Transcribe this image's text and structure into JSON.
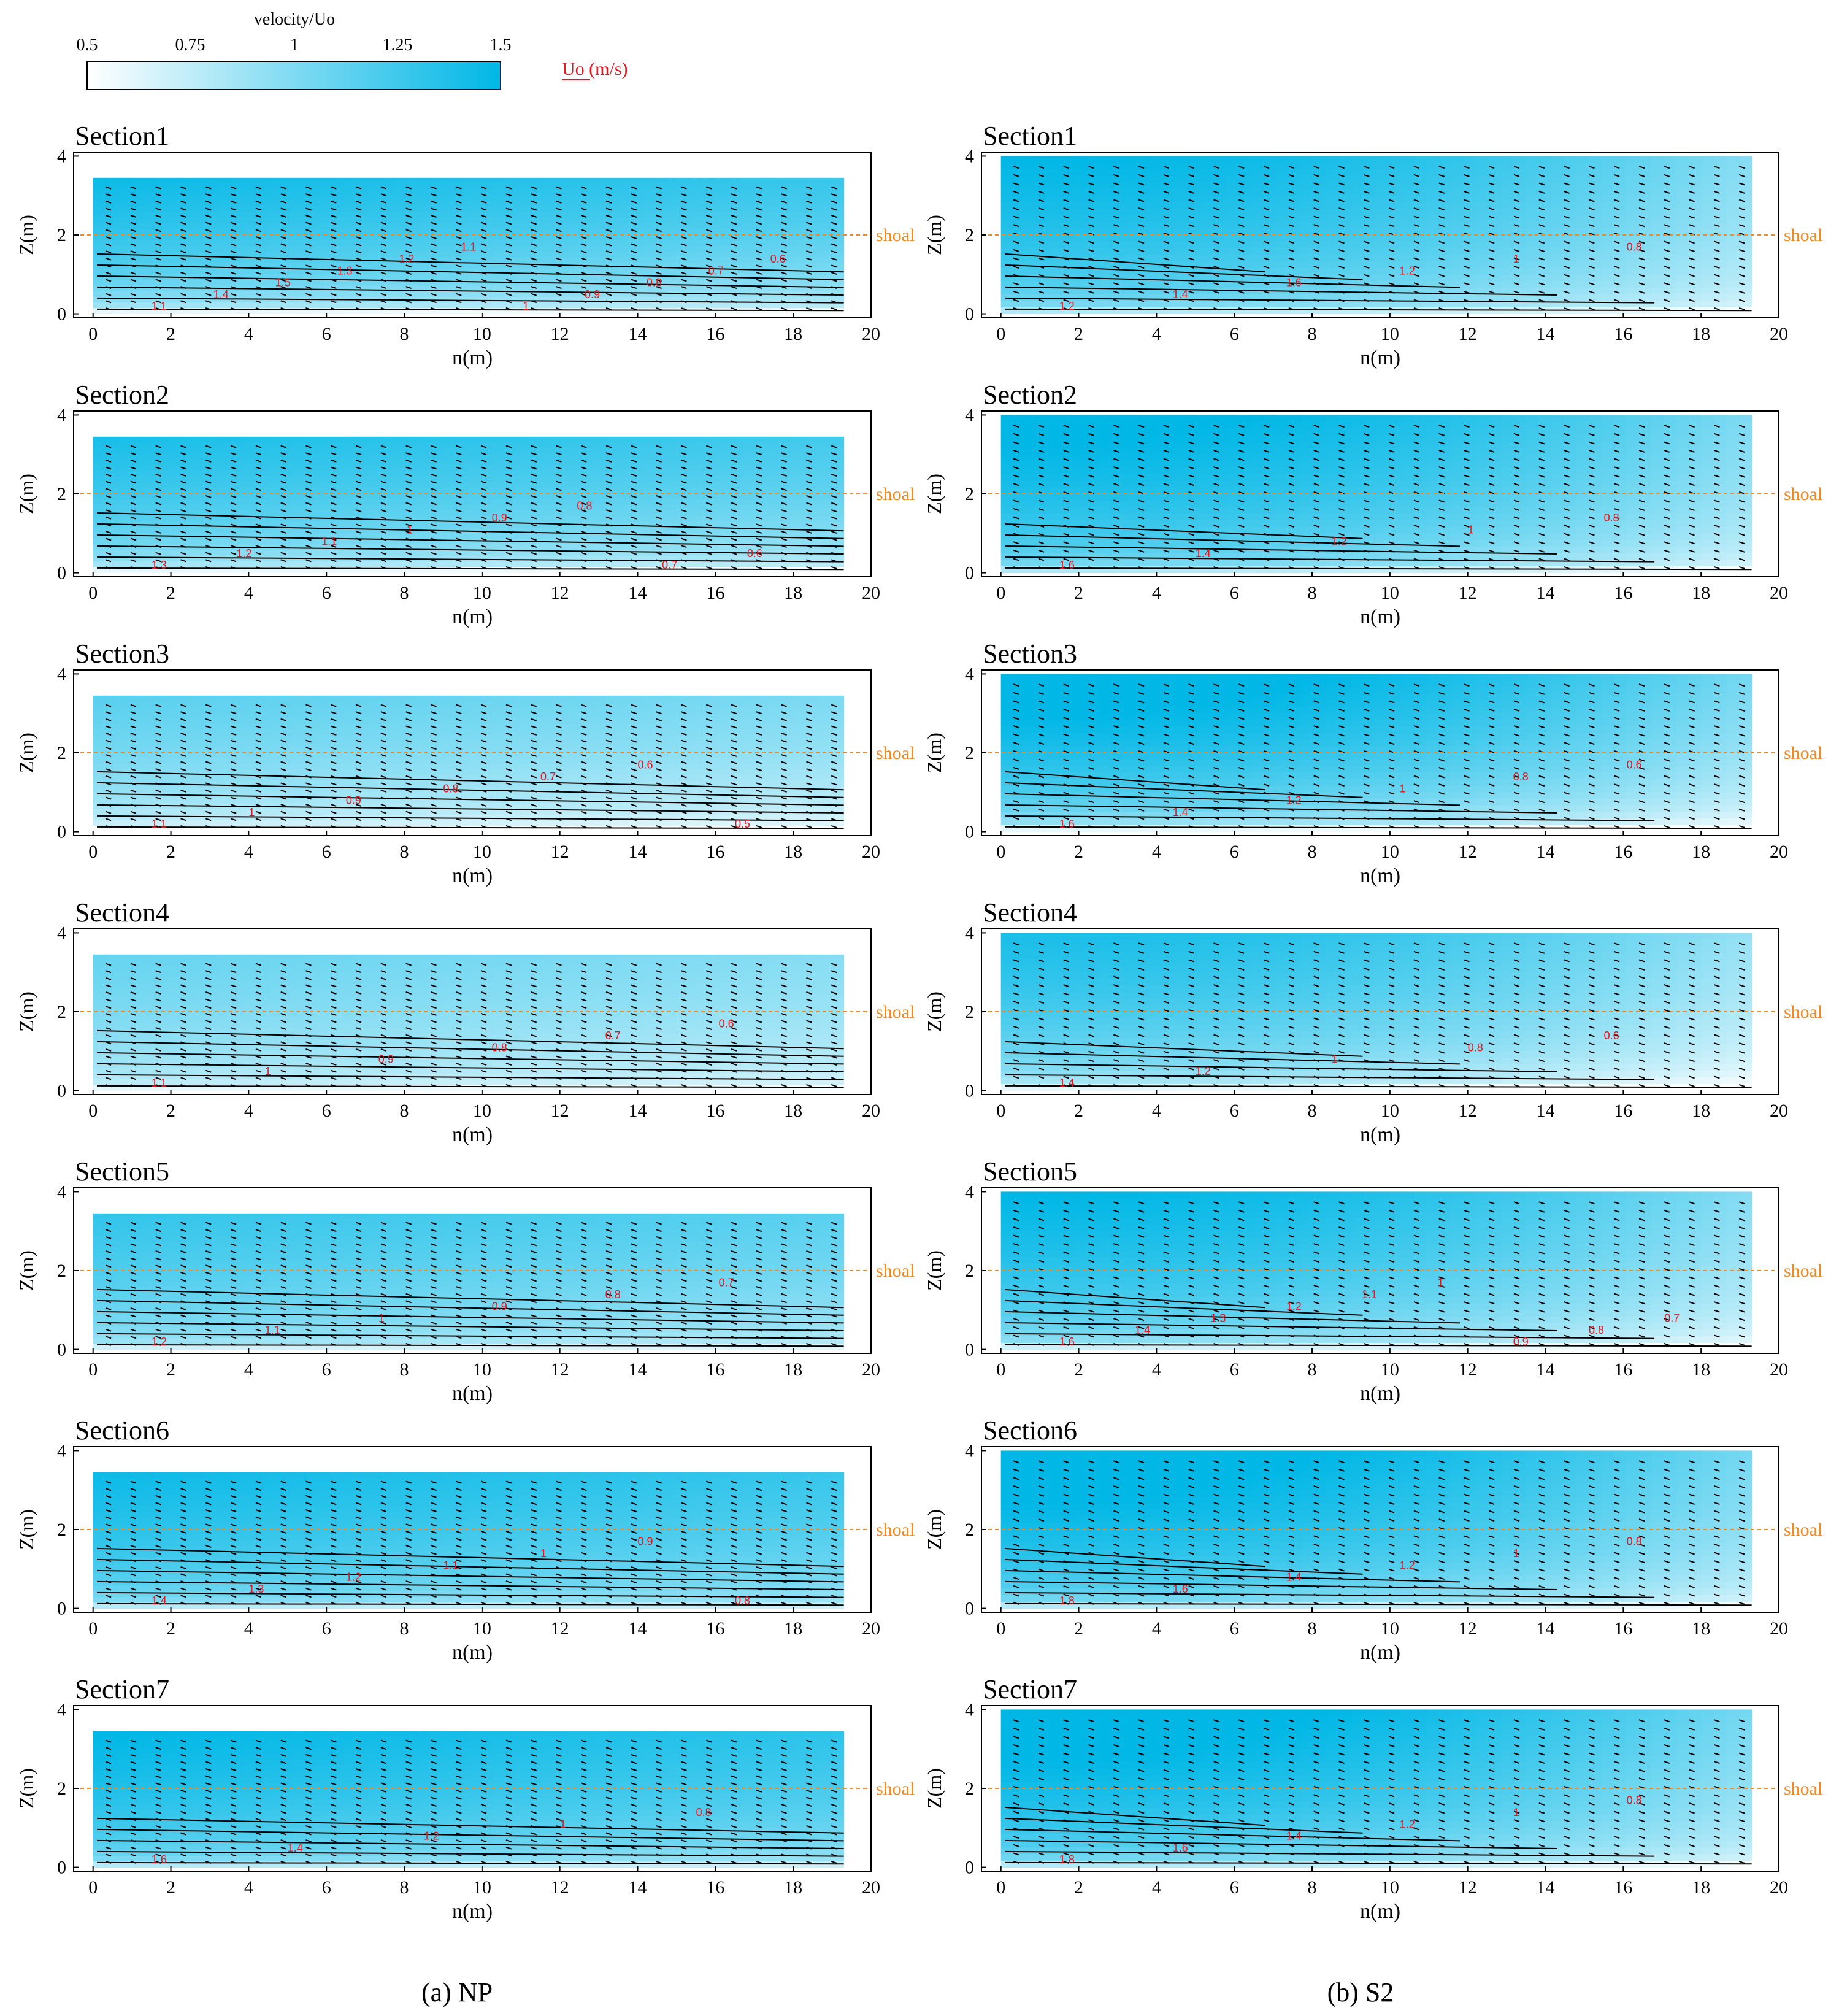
{
  "colorbar": {
    "title": "velocity/Uo",
    "ticks": [
      "0.5",
      "0.75",
      "1",
      "1.25",
      "1.5"
    ],
    "range": [
      0.5,
      1.5
    ],
    "color_low": "#ffffff",
    "color_high": "#00b7e6",
    "unit_label": "Uo (m/s)",
    "unit_color": "#e8131b"
  },
  "axes": {
    "ylabel": "Z(m)",
    "xlabel": "n(m)",
    "x_ticks": [
      "0",
      "2",
      "4",
      "6",
      "8",
      "10",
      "12",
      "14",
      "16",
      "18",
      "20"
    ],
    "y_ticks": [
      "0",
      "2",
      "4"
    ],
    "xlim": [
      -0.5,
      20
    ],
    "ylim": [
      -0.1,
      4.1
    ],
    "shoal_label": "shoal",
    "shoal_level": 2,
    "shoal_color": "#f08a24"
  },
  "panel_captions": {
    "left": "(a)  NP",
    "right": "(b)  S2"
  },
  "chart_data": [
    {
      "type": "heatmap",
      "panel": "NP",
      "title": "Section1",
      "surface": 3.45,
      "velocity_at_surface": 1.45,
      "velocity_near_bed": 0.6,
      "contour_labels": [
        "1.1",
        "1.4",
        "1.5",
        "1.3",
        "1.2",
        "1.1",
        "1",
        "0.9",
        "0.8",
        "0.7",
        "0.6"
      ]
    },
    {
      "type": "heatmap",
      "panel": "NP",
      "title": "Section2",
      "surface": 3.45,
      "velocity_at_surface": 1.4,
      "velocity_near_bed": 0.6,
      "contour_labels": [
        "1.3",
        "1.2",
        "1.1",
        "1",
        "0.9",
        "0.8",
        "0.7",
        "0.6"
      ]
    },
    {
      "type": "heatmap",
      "panel": "NP",
      "title": "Section3",
      "surface": 3.45,
      "velocity_at_surface": 1.15,
      "velocity_near_bed": 0.5,
      "contour_labels": [
        "1.1",
        "1",
        "0.9",
        "0.8",
        "0.7",
        "0.6",
        "0.5"
      ]
    },
    {
      "type": "heatmap",
      "panel": "NP",
      "title": "Section4",
      "surface": 3.45,
      "velocity_at_surface": 1.1,
      "velocity_near_bed": 0.6,
      "contour_labels": [
        "1.1",
        "1",
        "0.9",
        "0.8",
        "0.7",
        "0.6"
      ]
    },
    {
      "type": "heatmap",
      "panel": "NP",
      "title": "Section5",
      "surface": 3.45,
      "velocity_at_surface": 1.3,
      "velocity_near_bed": 0.7,
      "contour_labels": [
        "1.2",
        "1.1",
        "1",
        "0.9",
        "0.8",
        "0.7"
      ]
    },
    {
      "type": "heatmap",
      "panel": "NP",
      "title": "Section6",
      "surface": 3.45,
      "velocity_at_surface": 1.45,
      "velocity_near_bed": 0.8,
      "contour_labels": [
        "1.4",
        "1.3",
        "1.2",
        "1.1",
        "1",
        "0.9",
        "0.8"
      ]
    },
    {
      "type": "heatmap",
      "panel": "NP",
      "title": "Section7",
      "surface": 3.45,
      "velocity_at_surface": 1.5,
      "velocity_near_bed": 0.8,
      "contour_labels": [
        "1.6",
        "1.4",
        "1.2",
        "1",
        "0.8"
      ]
    },
    {
      "type": "heatmap",
      "panel": "S2",
      "title": "Section1",
      "surface": 4.0,
      "velocity_at_surface": 1.5,
      "velocity_near_bed": 0.8,
      "contour_labels": [
        "1.2",
        "1.4",
        "1.6",
        "1.2",
        "1",
        "0.8"
      ]
    },
    {
      "type": "heatmap",
      "panel": "S2",
      "title": "Section2",
      "surface": 4.0,
      "velocity_at_surface": 1.55,
      "velocity_near_bed": 0.8,
      "contour_labels": [
        "1.6",
        "1.4",
        "1.2",
        "1",
        "0.8"
      ]
    },
    {
      "type": "heatmap",
      "panel": "S2",
      "title": "Section3",
      "surface": 4.0,
      "velocity_at_surface": 1.6,
      "velocity_near_bed": 0.6,
      "contour_labels": [
        "1.6",
        "1.4",
        "1.2",
        "1",
        "0.8",
        "0.6"
      ]
    },
    {
      "type": "heatmap",
      "panel": "S2",
      "title": "Section4",
      "surface": 4.0,
      "velocity_at_surface": 1.4,
      "velocity_near_bed": 0.6,
      "contour_labels": [
        "1.4",
        "1.2",
        "1",
        "0.8",
        "0.6"
      ]
    },
    {
      "type": "heatmap",
      "panel": "S2",
      "title": "Section5",
      "surface": 4.0,
      "velocity_at_surface": 1.5,
      "velocity_near_bed": 0.7,
      "contour_labels": [
        "1.6",
        "1.4",
        "1.3",
        "1.2",
        "1.1",
        "1",
        "0.9",
        "0.8",
        "0.7"
      ]
    },
    {
      "type": "heatmap",
      "panel": "S2",
      "title": "Section6",
      "surface": 4.0,
      "velocity_at_surface": 1.6,
      "velocity_near_bed": 0.8,
      "contour_labels": [
        "1.8",
        "1.6",
        "1.4",
        "1.2",
        "1",
        "0.8"
      ]
    },
    {
      "type": "heatmap",
      "panel": "S2",
      "title": "Section7",
      "surface": 4.0,
      "velocity_at_surface": 1.6,
      "velocity_near_bed": 0.8,
      "contour_labels": [
        "1.8",
        "1.6",
        "1.4",
        "1.2",
        "1",
        "0.8"
      ]
    }
  ]
}
